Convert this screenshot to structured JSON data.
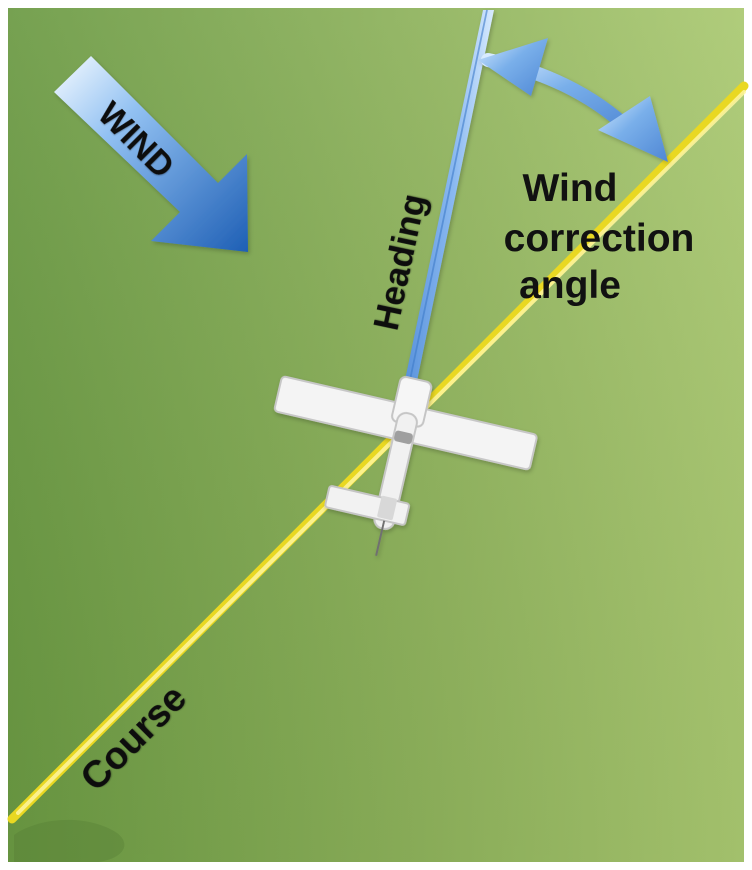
{
  "labels": {
    "wind": "WIND",
    "heading": "Heading",
    "wind_correction_line1": "Wind",
    "wind_correction_line2": "correction",
    "wind_correction_line3": "angle",
    "course": "Course"
  },
  "colors": {
    "field_dark": "#6f9a45",
    "field_light": "#a5c46b",
    "course_line": "#f6ec2f",
    "course_line_highlight": "#fff9a8",
    "heading_line": "#6a9fe3",
    "heading_line_light": "#bcd9ff",
    "wind_arrow_dark": "#1e5fb5",
    "wind_arrow_light": "#dfeeff",
    "angle_arrow": "#5f99de",
    "angle_arrow_light": "#cfe5ff",
    "aircraft_body": "#f2f2f2",
    "aircraft_shadow": "#bfbfbf",
    "text": "#111111"
  },
  "icons": {
    "wind": "wind-arrow-icon",
    "aircraft": "airplane-icon",
    "angle": "curved-double-arrow-icon"
  }
}
